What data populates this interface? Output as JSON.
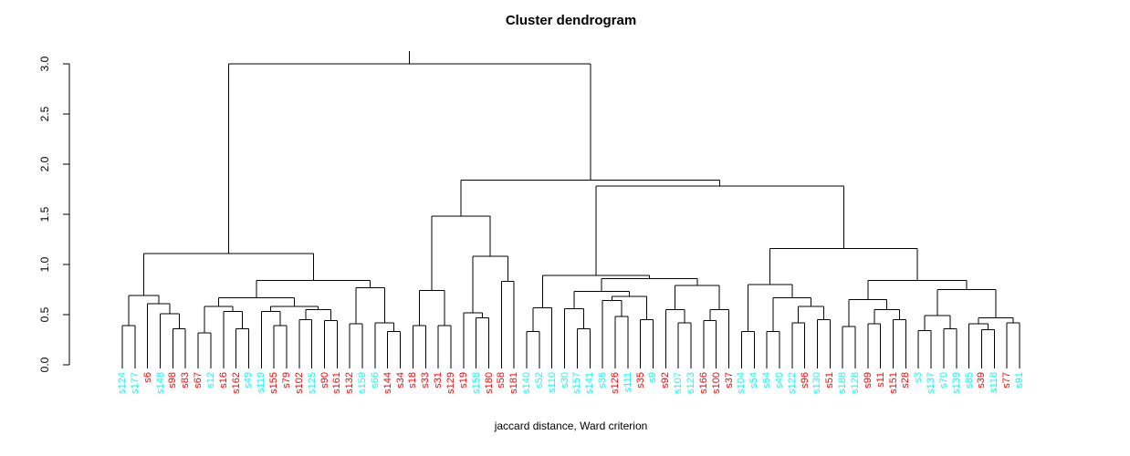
{
  "title": "Cluster dendrogram",
  "xlabel": "jaccard distance, Ward criterion",
  "colors": {
    "cyan": "#00FFFF",
    "red": "#FF0000",
    "line": "#000000"
  },
  "y_axis": {
    "ticks": [
      "0.0",
      "0.5",
      "1.0",
      "1.5",
      "2.0",
      "2.5",
      "3.0"
    ],
    "min": 0,
    "max": 3
  },
  "chart_data": {
    "type": "dendrogram",
    "title": "Cluster dendrogram",
    "xlabel": "jaccard distance, Ward criterion",
    "ylim": [
      0,
      3
    ],
    "leaves": [
      {
        "label": "s124",
        "color": "cyan"
      },
      {
        "label": "s177",
        "color": "cyan"
      },
      {
        "label": "s6",
        "color": "red"
      },
      {
        "label": "s148",
        "color": "cyan"
      },
      {
        "label": "s98",
        "color": "red"
      },
      {
        "label": "s83",
        "color": "red"
      },
      {
        "label": "s67",
        "color": "red"
      },
      {
        "label": "s12",
        "color": "cyan"
      },
      {
        "label": "s16",
        "color": "red"
      },
      {
        "label": "s162",
        "color": "red"
      },
      {
        "label": "s49",
        "color": "cyan"
      },
      {
        "label": "s119",
        "color": "cyan"
      },
      {
        "label": "s155",
        "color": "red"
      },
      {
        "label": "s79",
        "color": "red"
      },
      {
        "label": "s102",
        "color": "red"
      },
      {
        "label": "s125",
        "color": "cyan"
      },
      {
        "label": "s90",
        "color": "red"
      },
      {
        "label": "s161",
        "color": "red"
      },
      {
        "label": "s132",
        "color": "red"
      },
      {
        "label": "s159",
        "color": "cyan"
      },
      {
        "label": "s66",
        "color": "cyan"
      },
      {
        "label": "s144",
        "color": "red"
      },
      {
        "label": "s34",
        "color": "red"
      },
      {
        "label": "s18",
        "color": "red"
      },
      {
        "label": "s33",
        "color": "red"
      },
      {
        "label": "s31",
        "color": "red"
      },
      {
        "label": "s129",
        "color": "red"
      },
      {
        "label": "s19",
        "color": "red"
      },
      {
        "label": "s158",
        "color": "cyan"
      },
      {
        "label": "s180",
        "color": "red"
      },
      {
        "label": "s58",
        "color": "red"
      },
      {
        "label": "s181",
        "color": "red"
      },
      {
        "label": "s140",
        "color": "cyan"
      },
      {
        "label": "s52",
        "color": "cyan"
      },
      {
        "label": "s110",
        "color": "cyan"
      },
      {
        "label": "s30",
        "color": "cyan"
      },
      {
        "label": "s157",
        "color": "cyan"
      },
      {
        "label": "s141",
        "color": "cyan"
      },
      {
        "label": "s36",
        "color": "cyan"
      },
      {
        "label": "s126",
        "color": "red"
      },
      {
        "label": "s111",
        "color": "cyan"
      },
      {
        "label": "s35",
        "color": "red"
      },
      {
        "label": "s9",
        "color": "cyan"
      },
      {
        "label": "s92",
        "color": "red"
      },
      {
        "label": "s107",
        "color": "cyan"
      },
      {
        "label": "s123",
        "color": "cyan"
      },
      {
        "label": "s166",
        "color": "red"
      },
      {
        "label": "s100",
        "color": "red"
      },
      {
        "label": "s37",
        "color": "red"
      },
      {
        "label": "s104",
        "color": "cyan"
      },
      {
        "label": "s54",
        "color": "cyan"
      },
      {
        "label": "s64",
        "color": "cyan"
      },
      {
        "label": "s40",
        "color": "cyan"
      },
      {
        "label": "s122",
        "color": "cyan"
      },
      {
        "label": "s96",
        "color": "red"
      },
      {
        "label": "s130",
        "color": "cyan"
      },
      {
        "label": "s51",
        "color": "red"
      },
      {
        "label": "s188",
        "color": "cyan"
      },
      {
        "label": "s128",
        "color": "cyan"
      },
      {
        "label": "s99",
        "color": "red"
      },
      {
        "label": "s11",
        "color": "red"
      },
      {
        "label": "s151",
        "color": "red"
      },
      {
        "label": "s28",
        "color": "red"
      },
      {
        "label": "s3",
        "color": "cyan"
      },
      {
        "label": "s137",
        "color": "cyan"
      },
      {
        "label": "s70",
        "color": "cyan"
      },
      {
        "label": "s139",
        "color": "cyan"
      },
      {
        "label": "s85",
        "color": "cyan"
      },
      {
        "label": "s39",
        "color": "red"
      },
      {
        "label": "s118",
        "color": "cyan"
      },
      {
        "label": "s77",
        "color": "red"
      },
      {
        "label": "s91",
        "color": "cyan"
      }
    ],
    "tree": {
      "h": 3.0,
      "c": [
        {
          "h": 1.11,
          "c": [
            {
              "h": 0.69,
              "c": [
                {
                  "h": 0.39,
                  "c": [
                    "s124",
                    "s177"
                  ]
                },
                {
                  "h": 0.61,
                  "c": [
                    "s6",
                    {
                      "h": 0.51,
                      "c": [
                        "s148",
                        {
                          "h": 0.36,
                          "c": [
                            "s98",
                            "s83"
                          ]
                        }
                      ]
                    }
                  ]
                }
              ]
            },
            {
              "h": 0.84,
              "c": [
                {
                  "h": 0.67,
                  "c": [
                    {
                      "h": 0.58,
                      "c": [
                        {
                          "h": 0.32,
                          "c": [
                            "s67",
                            "s12"
                          ]
                        },
                        {
                          "h": 0.53,
                          "c": [
                            "s16",
                            {
                              "h": 0.36,
                              "c": [
                                "s162",
                                "s49"
                              ]
                            }
                          ]
                        }
                      ]
                    },
                    {
                      "h": 0.58,
                      "c": [
                        {
                          "h": 0.53,
                          "c": [
                            "s119",
                            {
                              "h": 0.39,
                              "c": [
                                "s155",
                                "s79"
                              ]
                            }
                          ]
                        },
                        {
                          "h": 0.55,
                          "c": [
                            {
                              "h": 0.45,
                              "c": [
                                "s102",
                                "s125"
                              ]
                            },
                            {
                              "h": 0.44,
                              "c": [
                                "s90",
                                "s161"
                              ]
                            }
                          ]
                        }
                      ]
                    }
                  ]
                },
                {
                  "h": 0.77,
                  "c": [
                    {
                      "h": 0.41,
                      "c": [
                        "s132",
                        "s159"
                      ]
                    },
                    {
                      "h": 0.42,
                      "c": [
                        "s66",
                        {
                          "h": 0.33,
                          "c": [
                            "s144",
                            "s34"
                          ]
                        }
                      ]
                    }
                  ]
                }
              ]
            }
          ]
        },
        {
          "h": 1.84,
          "c": [
            {
              "h": 1.48,
              "c": [
                {
                  "h": 0.74,
                  "c": [
                    {
                      "h": 0.39,
                      "c": [
                        "s18",
                        "s33"
                      ]
                    },
                    {
                      "h": 0.39,
                      "c": [
                        "s31",
                        "s129"
                      ]
                    }
                  ]
                },
                {
                  "h": 1.08,
                  "c": [
                    {
                      "h": 0.52,
                      "c": [
                        "s19",
                        {
                          "h": 0.47,
                          "c": [
                            "s158",
                            "s180"
                          ]
                        }
                      ]
                    },
                    {
                      "h": 0.83,
                      "c": [
                        "s58",
                        "s181"
                      ]
                    }
                  ]
                }
              ]
            },
            {
              "h": 1.78,
              "c": [
                {
                  "h": 0.89,
                  "c": [
                    {
                      "h": 0.57,
                      "c": [
                        {
                          "h": 0.33,
                          "c": [
                            "s140",
                            "s52"
                          ]
                        },
                        "s110"
                      ]
                    },
                    {
                      "h": 0.86,
                      "c": [
                        {
                          "h": 0.73,
                          "c": [
                            {
                              "h": 0.56,
                              "c": [
                                "s30",
                                {
                                  "h": 0.36,
                                  "c": [
                                    "s157",
                                    "s141"
                                  ]
                                }
                              ]
                            },
                            {
                              "h": 0.68,
                              "c": [
                                {
                                  "h": 0.64,
                                  "c": [
                                    "s36",
                                    {
                                      "h": 0.48,
                                      "c": [
                                        "s126",
                                        "s111"
                                      ]
                                    }
                                  ]
                                },
                                {
                                  "h": 0.45,
                                  "c": [
                                    "s35",
                                    "s9"
                                  ]
                                }
                              ]
                            }
                          ]
                        },
                        {
                          "h": 0.79,
                          "c": [
                            {
                              "h": 0.55,
                              "c": [
                                "s92",
                                {
                                  "h": 0.42,
                                  "c": [
                                    "s107",
                                    "s123"
                                  ]
                                }
                              ]
                            },
                            {
                              "h": 0.55,
                              "c": [
                                {
                                  "h": 0.44,
                                  "c": [
                                    "s166",
                                    "s100"
                                  ]
                                },
                                "s37"
                              ]
                            }
                          ]
                        }
                      ]
                    }
                  ]
                },
                {
                  "h": 1.16,
                  "c": [
                    {
                      "h": 0.8,
                      "c": [
                        {
                          "h": 0.33,
                          "c": [
                            "s104",
                            "s54"
                          ]
                        },
                        {
                          "h": 0.67,
                          "c": [
                            {
                              "h": 0.33,
                              "c": [
                                "s64",
                                "s40"
                              ]
                            },
                            {
                              "h": 0.58,
                              "c": [
                                {
                                  "h": 0.42,
                                  "c": [
                                    "s122",
                                    "s96"
                                  ]
                                },
                                {
                                  "h": 0.45,
                                  "c": [
                                    "s130",
                                    "s51"
                                  ]
                                }
                              ]
                            }
                          ]
                        }
                      ]
                    },
                    {
                      "h": 0.84,
                      "c": [
                        {
                          "h": 0.65,
                          "c": [
                            {
                              "h": 0.38,
                              "c": [
                                "s188",
                                "s128"
                              ]
                            },
                            {
                              "h": 0.55,
                              "c": [
                                {
                                  "h": 0.41,
                                  "c": [
                                    "s99",
                                    "s11"
                                  ]
                                },
                                {
                                  "h": 0.45,
                                  "c": [
                                    "s151",
                                    "s28"
                                  ]
                                }
                              ]
                            }
                          ]
                        },
                        {
                          "h": 0.75,
                          "c": [
                            {
                              "h": 0.49,
                              "c": [
                                {
                                  "h": 0.34,
                                  "c": [
                                    "s3",
                                    "s137"
                                  ]
                                },
                                {
                                  "h": 0.36,
                                  "c": [
                                    "s70",
                                    "s139"
                                  ]
                                }
                              ]
                            },
                            {
                              "h": 0.47,
                              "c": [
                                {
                                  "h": 0.41,
                                  "c": [
                                    "s85",
                                    {
                                      "h": 0.35,
                                      "c": [
                                        "s39",
                                        "s118"
                                      ]
                                    }
                                  ]
                                },
                                {
                                  "h": 0.42,
                                  "c": [
                                    "s77",
                                    "s91"
                                  ]
                                }
                              ]
                            }
                          ]
                        }
                      ]
                    }
                  ]
                }
              ]
            }
          ]
        }
      ]
    }
  }
}
